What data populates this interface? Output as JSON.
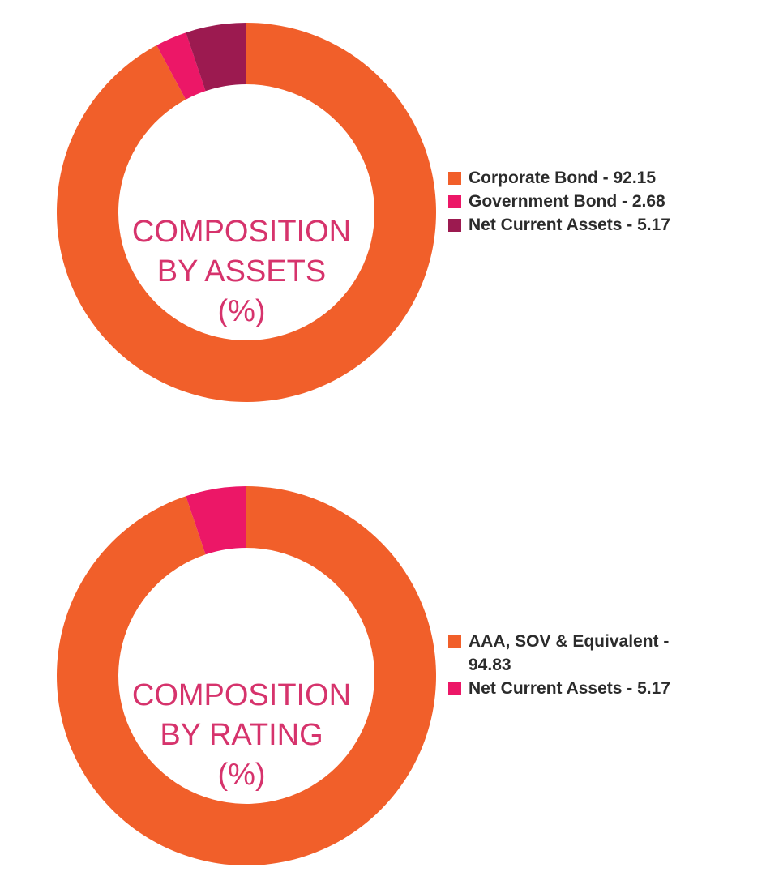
{
  "chart_data": [
    {
      "type": "pie",
      "title_lines": [
        "COMPOSITION",
        "BY ASSETS",
        "(%)"
      ],
      "legend_position": "right",
      "slices": [
        {
          "label": "Corporate Bond - 92.15",
          "value": 92.15,
          "color": "#f15f2a"
        },
        {
          "label": "Government Bond - 2.68",
          "value": 2.68,
          "color": "#ec1767"
        },
        {
          "label": "Net Current Assets - 5.17",
          "value": 5.17,
          "color": "#9c1a50"
        }
      ]
    },
    {
      "type": "pie",
      "title_lines": [
        "COMPOSITION",
        "BY RATING",
        "(%)"
      ],
      "legend_position": "right",
      "slices": [
        {
          "label": "AAA, SOV & Equivalent - 94.83",
          "value": 94.83,
          "color": "#f15f2a"
        },
        {
          "label": "Net Current Assets - 5.17",
          "value": 5.17,
          "color": "#ec1767"
        }
      ]
    }
  ]
}
